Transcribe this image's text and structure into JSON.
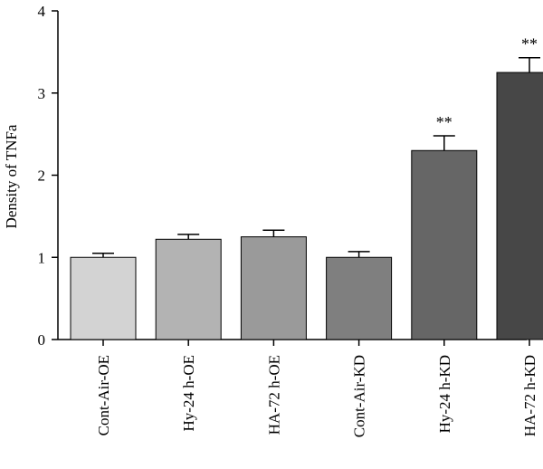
{
  "chart_data": {
    "type": "bar",
    "title": "",
    "xlabel": "",
    "ylabel": "Density of TNFa",
    "ylim": [
      0,
      4
    ],
    "yticks": [
      "0",
      "1",
      "2",
      "3",
      "4"
    ],
    "grid": false,
    "categories": [
      "Cont-Air-OE",
      "Hy-24 h-OE",
      "HA-72 h-OE",
      "Cont-Air-KD",
      "Hy-24 h-KD",
      "HA-72 h-KD"
    ],
    "values": [
      1.0,
      1.22,
      1.25,
      1.0,
      2.3,
      3.25
    ],
    "errors": [
      0.05,
      0.06,
      0.08,
      0.07,
      0.18,
      0.18
    ],
    "significance": [
      "",
      "",
      "",
      "",
      "**",
      "**"
    ],
    "colors": [
      "#d3d3d3",
      "#b3b3b3",
      "#9a9a9a",
      "#7f7f7f",
      "#666666",
      "#474747"
    ]
  }
}
